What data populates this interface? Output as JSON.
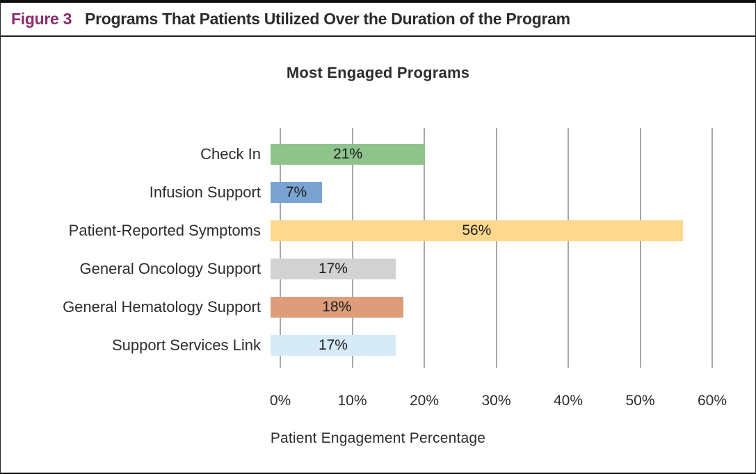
{
  "caption": {
    "label": "Figure 3",
    "title": "Programs That Patients Utilized Over the Duration of the Program"
  },
  "colors": {
    "caption_label": "#8e2a6e",
    "gridline": "#a7a7a7",
    "text": "#2d2d2d"
  },
  "chart_data": {
    "type": "bar",
    "orientation": "horizontal",
    "title": "Most Engaged Programs",
    "xlabel": "Patient Engagement Percentage",
    "ylabel": "",
    "categories": [
      "Check In",
      "Infusion Support",
      "Patient-Reported Symptoms",
      "General Oncology Support",
      "General Hematology Support",
      "Support Services Link"
    ],
    "values": [
      21,
      7,
      56,
      17,
      18,
      17
    ],
    "value_labels": [
      "21%",
      "7%",
      "56%",
      "17%",
      "18%",
      "17%"
    ],
    "bar_colors": [
      "#8ec48b",
      "#7aa3d1",
      "#fdd88d",
      "#d2d2d2",
      "#dd9d7b",
      "#d7eaf8"
    ],
    "xlim": [
      0,
      60
    ],
    "x_ticks": [
      "0%",
      "10%",
      "20%",
      "30%",
      "40%",
      "50%",
      "60%"
    ],
    "x_tick_values": [
      0,
      10,
      20,
      30,
      40,
      50,
      60
    ],
    "grid": "vertical-only",
    "legend": "none"
  }
}
